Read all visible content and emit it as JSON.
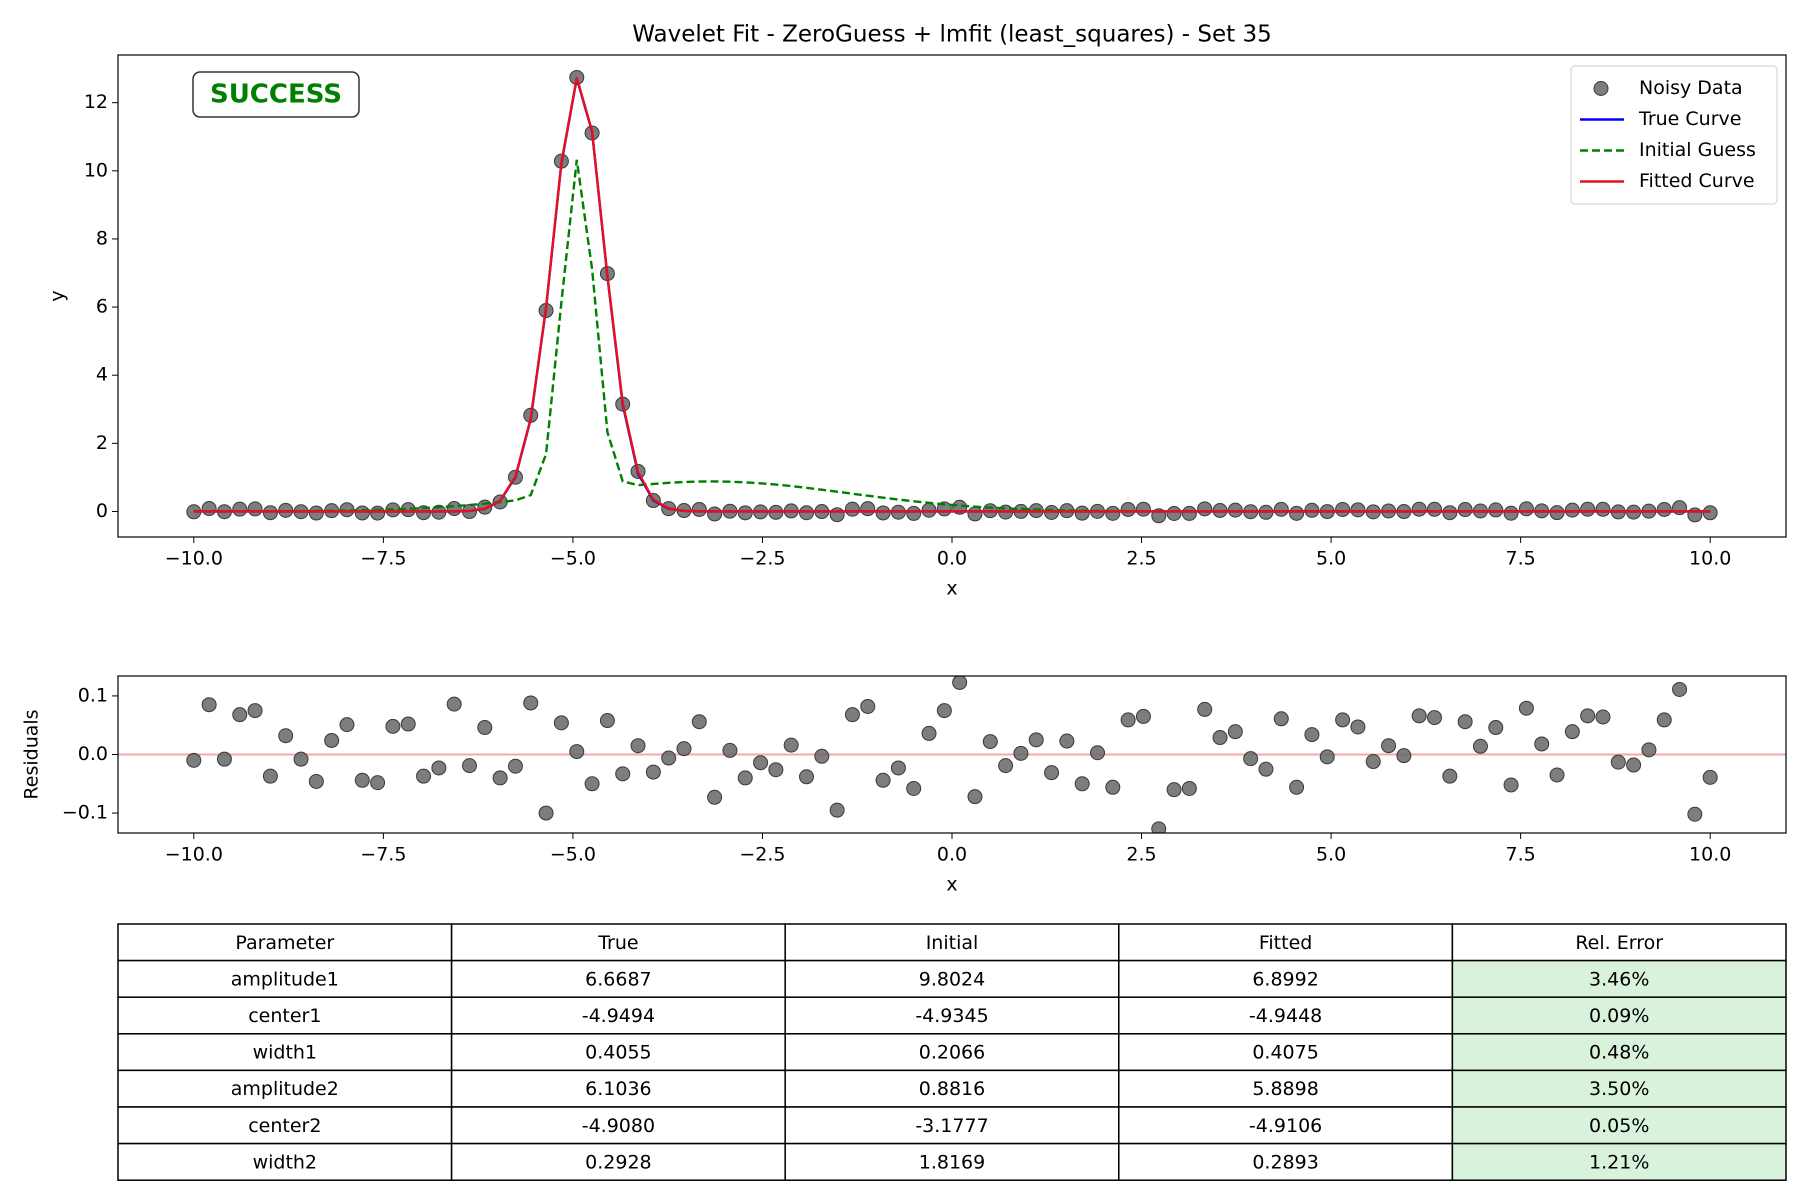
{
  "chart_data": [
    {
      "type": "line",
      "title": "Wavelet Fit - ZeroGuess + lmfit (least_squares) - Set 35",
      "xlabel": "x",
      "ylabel": "y",
      "annotation": {
        "text": "SUCCESS",
        "color": "#008000"
      },
      "legend": "upper right",
      "xlim": [
        -11,
        11
      ],
      "ylim": [
        -0.75,
        13.4
      ],
      "xticks": [
        {
          "value": -10,
          "label": "−10.0"
        },
        {
          "value": -7.5,
          "label": "−7.5"
        },
        {
          "value": -5,
          "label": "−5.0"
        },
        {
          "value": -2.5,
          "label": "−2.5"
        },
        {
          "value": 0,
          "label": "0.0"
        },
        2.5,
        {
          "value": 5,
          "label": "5.0"
        },
        7.5,
        {
          "value": 10,
          "label": "10.0"
        }
      ],
      "yticks": [
        0,
        2,
        4,
        6,
        8,
        10,
        12
      ],
      "x": [
        -10,
        -9.798,
        -9.596,
        -9.394,
        -9.192,
        -8.99,
        -8.788,
        -8.586,
        -8.384,
        -8.182,
        -7.98,
        -7.778,
        -7.576,
        -7.374,
        -7.172,
        -6.97,
        -6.768,
        -6.566,
        -6.364,
        -6.162,
        -5.96,
        -5.758,
        -5.556,
        -5.354,
        -5.152,
        -4.949,
        -4.747,
        -4.545,
        -4.343,
        -4.141,
        -3.939,
        -3.737,
        -3.535,
        -3.333,
        -3.131,
        -2.929,
        -2.727,
        -2.525,
        -2.323,
        -2.121,
        -1.919,
        -1.717,
        -1.515,
        -1.313,
        -1.111,
        -0.909,
        -0.707,
        -0.505,
        -0.303,
        -0.101,
        0.101,
        0.303,
        0.505,
        0.707,
        0.909,
        1.111,
        1.313,
        1.515,
        1.717,
        1.919,
        2.121,
        2.323,
        2.525,
        2.727,
        2.929,
        3.131,
        3.333,
        3.535,
        3.737,
        3.939,
        4.141,
        4.343,
        4.545,
        4.747,
        4.949,
        5.152,
        5.354,
        5.556,
        5.758,
        5.96,
        6.162,
        6.364,
        6.566,
        6.768,
        6.97,
        7.172,
        7.374,
        7.576,
        7.778,
        7.98,
        8.182,
        8.384,
        8.586,
        8.788,
        8.99,
        9.192,
        9.394,
        9.596,
        9.798,
        10
      ],
      "series": [
        {
          "name": "Noisy Data",
          "type": "scatter",
          "color": "#666666",
          "values": [
            -0.01,
            0.085,
            -0.008,
            0.068,
            0.075,
            -0.037,
            0.032,
            -0.008,
            -0.046,
            0.024,
            0.051,
            -0.044,
            -0.048,
            0.048,
            0.052,
            -0.037,
            -0.023,
            0.086,
            -0.003,
            0.126,
            0.278,
            1.005,
            2.823,
            5.898,
            10.284,
            12.741,
            11.111,
            6.983,
            3.151,
            1.175,
            0.32,
            0.082,
            0.027,
            0.059,
            -0.073,
            0.007,
            -0.04,
            -0.014,
            -0.026,
            0.016,
            -0.038,
            -0.003,
            -0.095,
            0.068,
            0.082,
            -0.044,
            -0.023,
            -0.058,
            0.036,
            0.075,
            0.123,
            -0.072,
            0.022,
            -0.019,
            0.002,
            0.025,
            -0.031,
            0.023,
            -0.05,
            0.003,
            -0.056,
            0.059,
            0.065,
            -0.127,
            -0.06,
            -0.058,
            0.077,
            0.029,
            0.039,
            -0.007,
            -0.025,
            0.061,
            -0.056,
            0.034,
            -0.004,
            0.059,
            0.047,
            -0.012,
            0.015,
            -0.002,
            0.066,
            0.063,
            -0.037,
            0.056,
            0.014,
            0.046,
            -0.052,
            0.079,
            0.018,
            -0.035,
            0.039,
            0.066,
            0.064,
            -0.013,
            -0.018,
            0.008,
            0.059,
            0.111,
            -0.102,
            -0.039
          ]
        },
        {
          "name": "True Curve",
          "type": "line",
          "color": "#0000ff",
          "linestyle": "solid",
          "values": [
            0,
            0,
            0,
            0,
            0,
            0,
            0,
            0,
            0,
            0,
            0,
            0,
            0,
            0,
            0,
            0,
            0,
            0,
            0.015,
            0.076,
            0.309,
            1.006,
            2.71,
            5.977,
            10.21,
            12.712,
            11.144,
            6.897,
            3.134,
            1.114,
            0.326,
            0.079,
            0.015,
            0.002,
            0,
            0,
            0,
            0,
            0,
            0,
            0,
            0,
            0,
            0,
            0,
            0,
            0,
            0,
            0,
            0,
            0,
            0,
            0,
            0,
            0,
            0,
            0,
            0,
            0,
            0,
            0,
            0,
            0,
            0,
            0,
            0,
            0,
            0,
            0,
            0,
            0,
            0,
            0,
            0,
            0,
            0,
            0,
            0,
            0,
            0,
            0,
            0,
            0,
            0,
            0,
            0,
            0,
            0,
            0,
            0,
            0,
            0,
            0,
            0,
            0,
            0,
            0,
            0,
            0,
            0
          ]
        },
        {
          "name": "Initial Guess",
          "type": "line",
          "color": "#008000",
          "linestyle": "dashed",
          "values": [
            0.001,
            0.001,
            0.002,
            0.003,
            0.004,
            0.005,
            0.008,
            0.011,
            0.015,
            0.02,
            0.027,
            0.036,
            0.047,
            0.061,
            0.079,
            0.1,
            0.125,
            0.155,
            0.189,
            0.229,
            0.273,
            0.325,
            0.481,
            1.683,
            6.135,
            10.325,
            7.115,
            2.33,
            0.882,
            0.772,
            0.807,
            0.841,
            0.865,
            0.878,
            0.881,
            0.873,
            0.855,
            0.827,
            0.789,
            0.745,
            0.694,
            0.638,
            0.58,
            0.521,
            0.462,
            0.404,
            0.35,
            0.299,
            0.252,
            0.21,
            0.173,
            0.141,
            0.113,
            0.09,
            0.07,
            0.054,
            0.042,
            0.031,
            0.023,
            0.017,
            0.013,
            0.009,
            0.006,
            0.004,
            0.003,
            0.002,
            0.001,
            0,
            0,
            0,
            0,
            0,
            0,
            0,
            0,
            0,
            0,
            0,
            0,
            0,
            0,
            0,
            0,
            0,
            0,
            0,
            0,
            0,
            0,
            0,
            0,
            0,
            0,
            0,
            0,
            0,
            0,
            0,
            0,
            0
          ]
        },
        {
          "name": "Fitted Curve",
          "type": "line",
          "color": "#e8101a",
          "linestyle": "solid",
          "values": [
            0,
            0,
            0,
            0,
            0,
            0,
            0,
            0,
            0,
            0,
            0,
            0,
            0,
            0,
            0,
            0,
            0,
            0,
            0.016,
            0.08,
            0.318,
            1.025,
            2.735,
            5.998,
            10.23,
            12.736,
            11.161,
            6.925,
            3.184,
            1.16,
            0.35,
            0.088,
            0.017,
            0.003,
            0,
            0,
            0,
            0,
            0,
            0,
            0,
            0,
            0,
            0,
            0,
            0,
            0,
            0,
            0,
            0,
            0,
            0,
            0,
            0,
            0,
            0,
            0,
            0,
            0,
            0,
            0,
            0,
            0,
            0,
            0,
            0,
            0,
            0,
            0,
            0,
            0,
            0,
            0,
            0,
            0,
            0,
            0,
            0,
            0,
            0,
            0,
            0,
            0,
            0,
            0,
            0,
            0,
            0,
            0,
            0,
            0,
            0,
            0,
            0,
            0,
            0,
            0,
            0,
            0,
            0
          ]
        }
      ]
    },
    {
      "type": "scatter",
      "xlabel": "x",
      "ylabel": "Residuals",
      "xlim": [
        -11,
        11
      ],
      "ylim": [
        -0.134,
        0.134
      ],
      "xticks": [
        {
          "value": -10,
          "label": "−10.0"
        },
        {
          "value": -7.5,
          "label": "−7.5"
        },
        {
          "value": -5,
          "label": "−5.0"
        },
        {
          "value": -2.5,
          "label": "−2.5"
        },
        {
          "value": 0,
          "label": "0.0"
        },
        2.5,
        {
          "value": 5,
          "label": "5.0"
        },
        7.5,
        {
          "value": 10,
          "label": "10.0"
        }
      ],
      "yticks": [
        {
          "value": -0.1,
          "label": "−0.1"
        },
        {
          "value": 0,
          "label": "0.0"
        },
        0.1
      ],
      "hline": 0,
      "hline_color": "#f5a8a8",
      "color": "#666666",
      "x": [
        -10,
        -9.798,
        -9.596,
        -9.394,
        -9.192,
        -8.99,
        -8.788,
        -8.586,
        -8.384,
        -8.182,
        -7.98,
        -7.778,
        -7.576,
        -7.374,
        -7.172,
        -6.97,
        -6.768,
        -6.566,
        -6.364,
        -6.162,
        -5.96,
        -5.758,
        -5.556,
        -5.354,
        -5.152,
        -4.949,
        -4.747,
        -4.545,
        -4.343,
        -4.141,
        -3.939,
        -3.737,
        -3.535,
        -3.333,
        -3.131,
        -2.929,
        -2.727,
        -2.525,
        -2.323,
        -2.121,
        -1.919,
        -1.717,
        -1.515,
        -1.313,
        -1.111,
        -0.909,
        -0.707,
        -0.505,
        -0.303,
        -0.101,
        0.101,
        0.303,
        0.505,
        0.707,
        0.909,
        1.111,
        1.313,
        1.515,
        1.717,
        1.919,
        2.121,
        2.323,
        2.525,
        2.727,
        2.929,
        3.131,
        3.333,
        3.535,
        3.737,
        3.939,
        4.141,
        4.343,
        4.545,
        4.747,
        4.949,
        5.152,
        5.354,
        5.556,
        5.758,
        5.96,
        6.162,
        6.364,
        6.566,
        6.768,
        6.97,
        7.172,
        7.374,
        7.576,
        7.778,
        7.98,
        8.182,
        8.384,
        8.586,
        8.788,
        8.99,
        9.192,
        9.394,
        9.596,
        9.798,
        10
      ],
      "values": [
        -0.01,
        0.085,
        -0.008,
        0.068,
        0.075,
        -0.037,
        0.032,
        -0.008,
        -0.046,
        0.024,
        0.051,
        -0.044,
        -0.048,
        0.048,
        0.052,
        -0.037,
        -0.023,
        0.086,
        -0.019,
        0.046,
        -0.04,
        -0.02,
        0.088,
        -0.1,
        0.054,
        0.005,
        -0.05,
        0.058,
        -0.033,
        0.015,
        -0.03,
        -0.006,
        0.01,
        0.056,
        -0.073,
        0.007,
        -0.04,
        -0.014,
        -0.026,
        0.016,
        -0.038,
        -0.003,
        -0.095,
        0.068,
        0.082,
        -0.044,
        -0.023,
        -0.058,
        0.036,
        0.075,
        0.123,
        -0.072,
        0.022,
        -0.019,
        0.002,
        0.025,
        -0.031,
        0.023,
        -0.05,
        0.003,
        -0.056,
        0.059,
        0.065,
        -0.127,
        -0.06,
        -0.058,
        0.077,
        0.029,
        0.039,
        -0.007,
        -0.025,
        0.061,
        -0.056,
        0.034,
        -0.004,
        0.059,
        0.047,
        -0.012,
        0.015,
        -0.002,
        0.066,
        0.063,
        -0.037,
        0.056,
        0.014,
        0.046,
        -0.052,
        0.079,
        0.018,
        -0.035,
        0.039,
        0.066,
        0.064,
        -0.013,
        -0.018,
        0.008,
        0.059,
        0.111,
        -0.102,
        -0.039
      ]
    }
  ],
  "table": {
    "header": [
      "Parameter",
      "True",
      "Initial",
      "Fitted",
      "Rel. Error"
    ],
    "rows": [
      [
        "amplitude1",
        "6.6687",
        "9.8024",
        "6.8992",
        "3.46%"
      ],
      [
        "center1",
        "-4.9494",
        "-4.9345",
        "-4.9448",
        "0.09%"
      ],
      [
        "width1",
        "0.4055",
        "0.2066",
        "0.4075",
        "0.48%"
      ],
      [
        "amplitude2",
        "6.1036",
        "0.8816",
        "5.8898",
        "3.50%"
      ],
      [
        "center2",
        "-4.9080",
        "-3.1777",
        "-4.9106",
        "0.05%"
      ],
      [
        "width2",
        "0.2928",
        "1.8169",
        "0.2893",
        "1.21%"
      ]
    ],
    "highlight_color": "#d8f2dc"
  }
}
